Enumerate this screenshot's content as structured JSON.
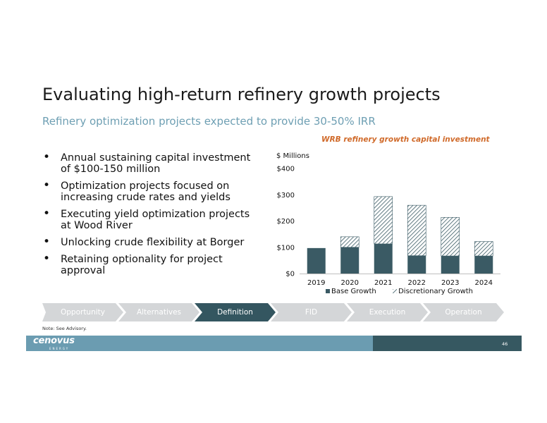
{
  "slide": {
    "title": "Evaluating high-return refinery growth projects",
    "subtitle": "Refinery optimization projects expected to provide 30-50% IRR",
    "bullets": [
      "Annual sustaining capital investment of $100-150 million",
      "Optimization projects focused on increasing crude rates and yields",
      "Executing yield optimization projects at Wood River",
      "Unlocking crude flexibility at Borger",
      "Retaining optionality for project approval"
    ],
    "note": "Note: See Advisory.",
    "page_number": "46",
    "logo_text": "cenovus",
    "logo_subtext": "ENERGY"
  },
  "process": {
    "steps": [
      "Opportunity",
      "Alternatives",
      "Definition",
      "FID",
      "Execution",
      "Operation"
    ],
    "active_index": 2
  },
  "colors": {
    "base": "#3a5a64",
    "accent_title": "#d06a2a",
    "subtitle": "#6e9fb3",
    "footer_light": "#6b9cb1",
    "footer_dark": "#365861"
  },
  "chart_data": {
    "type": "bar",
    "stacked": true,
    "title": "WRB refinery growth capital investment",
    "ylabel": "$ Millions",
    "categories": [
      "2019",
      "2020",
      "2021",
      "2022",
      "2023",
      "2024"
    ],
    "series": [
      {
        "name": "Base Growth",
        "values": [
          97,
          100,
          113,
          68,
          67,
          67
        ],
        "pattern": "solid"
      },
      {
        "name": "Discretionary Growth",
        "values": [
          0,
          40,
          180,
          192,
          147,
          55
        ],
        "pattern": "hatched"
      }
    ],
    "ylim": [
      0,
      400
    ],
    "yticks": [
      0,
      100,
      200,
      300,
      400
    ],
    "ytick_labels": [
      "$0",
      "$100",
      "$200",
      "$300",
      "$400"
    ],
    "grid": false,
    "legend": "bottom"
  }
}
